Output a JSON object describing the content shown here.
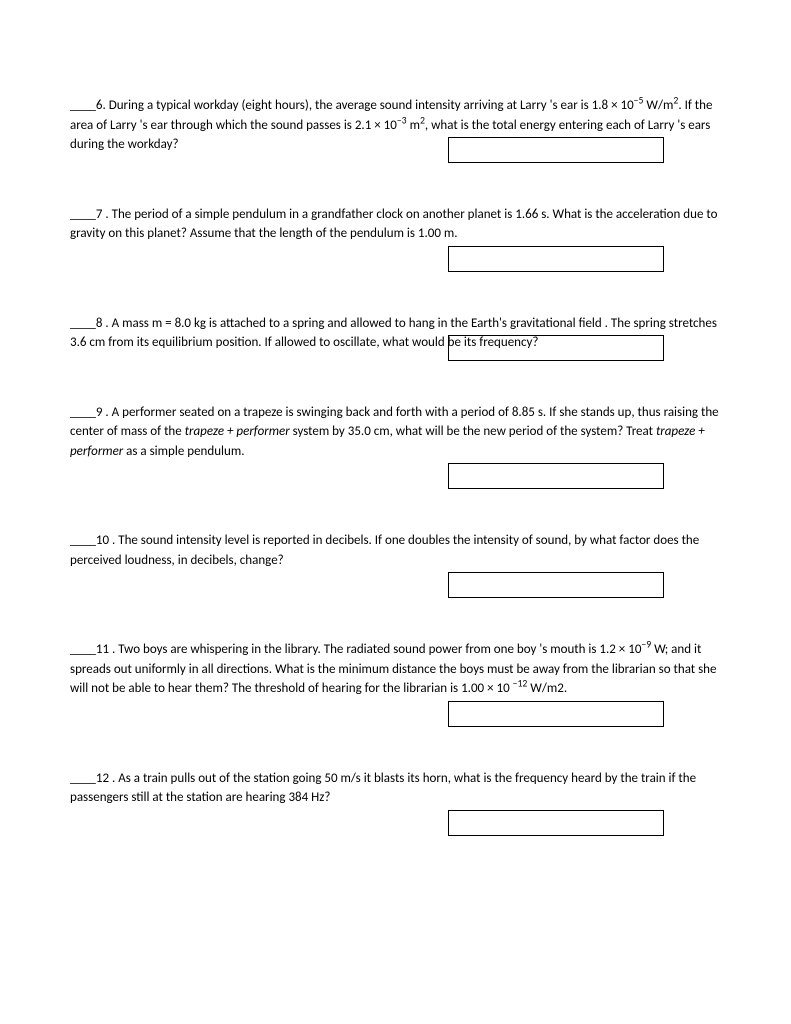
{
  "questions": [
    {
      "num": "6",
      "html": "____<span data-bind=\"questions.0.num\"></span>. During a typical workday (eight hours), the average sound intensity arriving at Larry &nbsp;'s ear is 1.8 &nbsp;× 10<sup>−5</sup> W/m<sup>2</sup>. &nbsp;If the area of Larry 's ear through which the sound passes is 2.1 &nbsp;× 10<sup>−3</sup> m<sup>2</sup>, what is the total energy entering each of Larry 's ears during the workday?"
    },
    {
      "num": "7",
      "html": "____7 . The period of a simple pendulum in a grandfather clock on another planet is 1.66 s. What is the acceleration due to gravity on this planet? Assume that the length of the pendulum is 1.00 m."
    },
    {
      "num": "8",
      "html": "____8 . A mass m = 8.0 kg is attached to a spring and allowed to hang in the Earth's gravitational field &nbsp;&nbsp;. The spring stretches 3.6 cm from &nbsp;its equilibrium position. If allowed to oscillate, what would be its frequency?"
    },
    {
      "num": "9",
      "html": "____9 . A performer seated on a trapeze is swinging back and forth with a period of 8.85 s. If she stands up, thus raising the center of mass of the &nbsp;<span class=\"italic\">trapeze + performer</span> system by 35.0 cm, what will be the new period of the system? Treat <span class=\"italic\">trapeze + performer</span> as a simple pendulum."
    },
    {
      "num": "10",
      "html": "____10 . The sound intensity level is reported in decibels. &nbsp;If one doubles the intensity of sound, by what factor does the perceived loudness, in decibels, change?"
    },
    {
      "num": "11",
      "html": "____11 . Two boys are whispering in the library. &nbsp;The radiated sound power from one boy 's mouth is 1.2 × 10<sup>−9</sup> W; and it spreads out uniformly in all directions. &nbsp;What is the minimum distance the boys must be away from the librarian so that she will not be able to hear them? &nbsp;The threshold of hearing for the librarian is 1.00 × 10 <sup>−12</sup> W/m2."
    },
    {
      "num": "12",
      "html": "____12 . As a train pulls out of the station going 50 m/s it blasts its horn, what is the frequency heard by the train if the passengers still at the station are hearing 384 Hz?"
    }
  ],
  "q6_text_p1": "____6. During a typical workday (eight hours), the average sound intensity arriving at Larry  's ear is 1.8  × 10",
  "q6_sup1": "−5",
  "q6_text_p2": " W/m",
  "q6_sup2": "2",
  "q6_text_p3": ".  If the area of Larry 's ear through which the sound passes is 2.1  × 10",
  "q6_sup3": "−3",
  "q6_text_p4": " m",
  "q6_sup4": "2",
  "q6_text_p5": ", what is the total energy entering each of Larry 's ears during the workday?",
  "q7_text": "____7 . The period of a simple pendulum in a grandfather clock on another planet is 1.66 s. What is the acceleration due to gravity on this planet? Assume that the length of the pendulum is 1.00 m.",
  "q8_text": "____8 . A mass m = 8.0 kg is attached to a spring and allowed to hang in the Earth's gravitational field   . The spring stretches 3.6 cm from  its equilibrium position. If allowed to oscillate, what would be its frequency?",
  "q9_p1": "____9 . A performer seated on a trapeze is swinging back and forth with a period of 8.85 s. If she stands up, thus raising the center of mass of the  ",
  "q9_i1": "trapeze + performer",
  "q9_p2": " system by 35.0 cm, what will be the new period of the system? Treat ",
  "q9_i2": "trapeze + performer",
  "q9_p3": " as a simple pendulum.",
  "q10_text": "____10 . The sound intensity level is reported in decibels.  If one doubles the intensity of sound, by what factor does the perceived loudness, in decibels, change?",
  "q11_p1": "____11 . Two boys are whispering in the library.  The radiated sound power from one boy 's mouth is 1.2 × 10",
  "q11_s1": "−9",
  "q11_p2": " W; and it spreads out uniformly in all directions.  What is the minimum distance the boys must be away from the librarian so that she will not be able to hear them?  The threshold of hearing for the librarian is 1.00 × 10 ",
  "q11_s2": "−12",
  "q11_p3": " W/m2.",
  "q12_text": "____12 . As a train pulls out of the station going 50 m/s it blasts its horn, what is the frequency heard by the train if the passengers still at the station are hearing 384 Hz?"
}
